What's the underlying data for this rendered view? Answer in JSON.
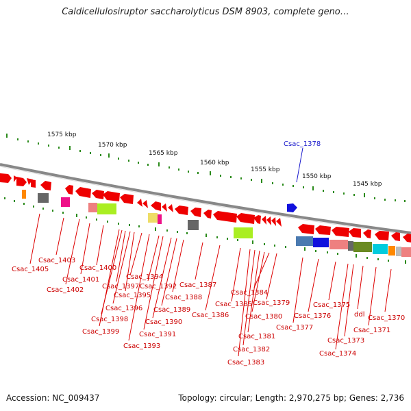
{
  "title": "Caldicellulosiruptor saccharolyticus DSM 8903, complete geno…",
  "footer": {
    "accession": "Accession: NC_009437",
    "topology": "Topology: circular; Length: 2,970,275 bp; Genes: 2,736"
  },
  "scale_labels": [
    "1575 kbp",
    "1570 kbp",
    "1565 kbp",
    "1560 kbp",
    "1555 kbp",
    "1550 kbp",
    "1545 kbp"
  ],
  "highlight": {
    "label": "Csac_1378",
    "color": "#1a1acc"
  },
  "gene_labels": [
    "Csac_1405",
    "Csac_1403",
    "Csac_1402",
    "Csac_1401",
    "Csac_1400",
    "Csac_1399",
    "Csac_1398",
    "Csac_1397",
    "Csac_1396",
    "Csac_1395",
    "Csac_1394",
    "Csac_1393",
    "Csac_1392",
    "Csac_1391",
    "Csac_1390",
    "Csac_1389",
    "Csac_1388",
    "Csac_1387",
    "Csac_1386",
    "Csac_1385",
    "Csac_1384",
    "Csac_1383",
    "Csac_1382",
    "Csac_1381",
    "Csac_1380",
    "Csac_1379",
    "Csac_1377",
    "Csac_1376",
    "Csac_1375",
    "Csac_1374",
    "Csac_1373",
    "ddl",
    "Csac_1371",
    "Csac_1370"
  ],
  "colors": {
    "gene_forward": "#ee0000",
    "gene_reverse": "#1111dd",
    "tick": "#2a8a1a",
    "label_line": "#dd0000",
    "backbone": "#888888"
  }
}
